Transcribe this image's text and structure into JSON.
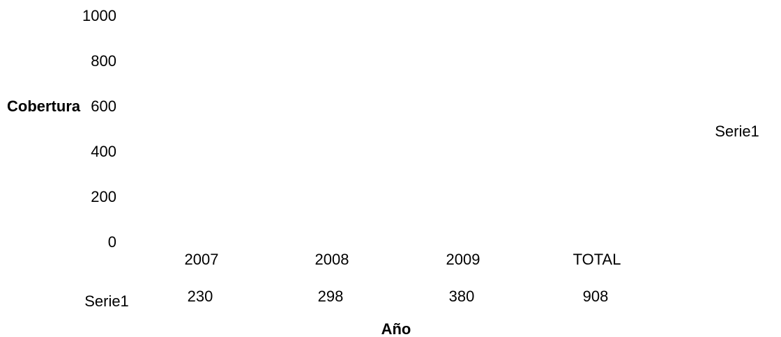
{
  "chart_data": {
    "type": "bar",
    "title": "",
    "xlabel": "Año",
    "ylabel": "Cobertura",
    "categories": [
      "2007",
      "2008",
      "2009",
      "TOTAL"
    ],
    "series": [
      {
        "name": "Serie1",
        "values": [
          230,
          298,
          380,
          908
        ]
      }
    ],
    "ylim": [
      0,
      1000
    ],
    "yticks": [
      "0",
      "200",
      "400",
      "600",
      "800",
      "1000"
    ],
    "data_table": {
      "row_label": "Serie1",
      "values": [
        "230",
        "298",
        "380",
        "908"
      ]
    },
    "legend": {
      "placement": "right",
      "entries": [
        "Serie1"
      ]
    },
    "grid": false
  }
}
